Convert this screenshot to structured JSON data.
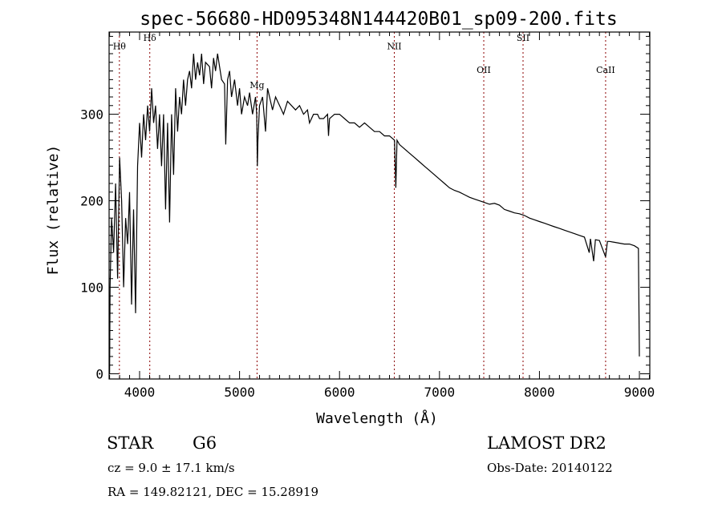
{
  "chart_data": {
    "type": "line",
    "title": "spec-56680-HD095348N144420B01_sp09-200.fits",
    "xlabel": "Wavelength (Å)",
    "ylabel": "Flux (relative)",
    "xlim": [
      3695,
      9104
    ],
    "ylim": [
      -6,
      395
    ],
    "xticks": [
      4000,
      5000,
      6000,
      7000,
      8000,
      9000
    ],
    "yticks": [
      0,
      100,
      200,
      300
    ],
    "grid": false,
    "line_color": "#000000",
    "marker_color": "#8b0000",
    "lines": [
      {
        "label": "Hθ",
        "wavelength": 3798,
        "label_flux": 375
      },
      {
        "label": "Hδ",
        "wavelength": 4102,
        "label_flux": 385
      },
      {
        "label": "Mg",
        "wavelength": 5175,
        "label_flux": 330
      },
      {
        "label": "NII",
        "wavelength": 6548,
        "label_flux": 375
      },
      {
        "label": "OII",
        "wavelength": 7443,
        "label_flux": 348
      },
      {
        "label": "SII",
        "wavelength": 7836,
        "label_flux": 385
      },
      {
        "label": "CaII",
        "wavelength": 8662,
        "label_flux": 348
      }
    ],
    "series": [
      {
        "name": "spectrum",
        "x": [
          3700,
          3705,
          3720,
          3740,
          3760,
          3780,
          3800,
          3820,
          3840,
          3860,
          3880,
          3900,
          3920,
          3940,
          3960,
          3980,
          4000,
          4020,
          4040,
          4060,
          4080,
          4100,
          4120,
          4140,
          4160,
          4180,
          4200,
          4220,
          4240,
          4260,
          4280,
          4300,
          4320,
          4340,
          4360,
          4380,
          4400,
          4420,
          4440,
          4460,
          4480,
          4500,
          4520,
          4540,
          4560,
          4580,
          4600,
          4620,
          4640,
          4660,
          4700,
          4720,
          4740,
          4760,
          4780,
          4800,
          4820,
          4850,
          4862,
          4880,
          4900,
          4920,
          4950,
          4980,
          5000,
          5020,
          5050,
          5080,
          5100,
          5130,
          5160,
          5172,
          5178,
          5184,
          5200,
          5230,
          5260,
          5280,
          5300,
          5330,
          5360,
          5400,
          5440,
          5480,
          5520,
          5560,
          5600,
          5640,
          5680,
          5700,
          5740,
          5780,
          5800,
          5840,
          5880,
          5890,
          5900,
          5950,
          6000,
          6050,
          6100,
          6150,
          6200,
          6250,
          6300,
          6350,
          6400,
          6450,
          6500,
          6550,
          6563,
          6575,
          6600,
          6650,
          6700,
          6750,
          6800,
          6850,
          6900,
          6950,
          7000,
          7050,
          7100,
          7150,
          7200,
          7250,
          7300,
          7350,
          7400,
          7450,
          7500,
          7550,
          7600,
          7650,
          7700,
          7750,
          7800,
          7850,
          7900,
          7950,
          8000,
          8050,
          8100,
          8150,
          8200,
          8250,
          8300,
          8350,
          8400,
          8450,
          8498,
          8510,
          8542,
          8560,
          8600,
          8662,
          8680,
          8700,
          8750,
          8800,
          8850,
          8900,
          8950,
          8990,
          9000
        ],
        "y": [
          0,
          100,
          180,
          140,
          220,
          110,
          250,
          200,
          100,
          180,
          150,
          210,
          80,
          190,
          70,
          240,
          290,
          250,
          300,
          270,
          310,
          280,
          330,
          290,
          310,
          260,
          300,
          240,
          300,
          190,
          290,
          175,
          300,
          230,
          330,
          280,
          320,
          300,
          340,
          310,
          340,
          350,
          330,
          370,
          340,
          360,
          345,
          370,
          335,
          360,
          355,
          330,
          365,
          350,
          370,
          355,
          340,
          335,
          265,
          340,
          350,
          320,
          340,
          310,
          330,
          300,
          320,
          310,
          325,
          300,
          320,
          300,
          240,
          270,
          310,
          320,
          280,
          330,
          320,
          305,
          320,
          310,
          300,
          315,
          310,
          305,
          310,
          300,
          305,
          290,
          300,
          300,
          295,
          295,
          300,
          275,
          295,
          300,
          300,
          295,
          290,
          290,
          285,
          290,
          285,
          280,
          280,
          275,
          275,
          270,
          215,
          270,
          265,
          260,
          255,
          250,
          245,
          240,
          235,
          230,
          225,
          220,
          215,
          212,
          210,
          207,
          204,
          202,
          200,
          198,
          196,
          197,
          195,
          190,
          188,
          186,
          185,
          183,
          180,
          178,
          176,
          174,
          172,
          170,
          168,
          166,
          164,
          162,
          160,
          158,
          140,
          156,
          130,
          155,
          154,
          135,
          153,
          153,
          152,
          151,
          150,
          150,
          148,
          145,
          20
        ]
      }
    ]
  },
  "footer": {
    "object_class": "STAR",
    "subclass": "G6",
    "survey": "LAMOST DR2",
    "cz": "cz = 9.0 ± 17.1 km/s",
    "obs_date": "Obs-Date: 20140122",
    "coords": "RA = 149.82121, DEC =  15.28919"
  }
}
